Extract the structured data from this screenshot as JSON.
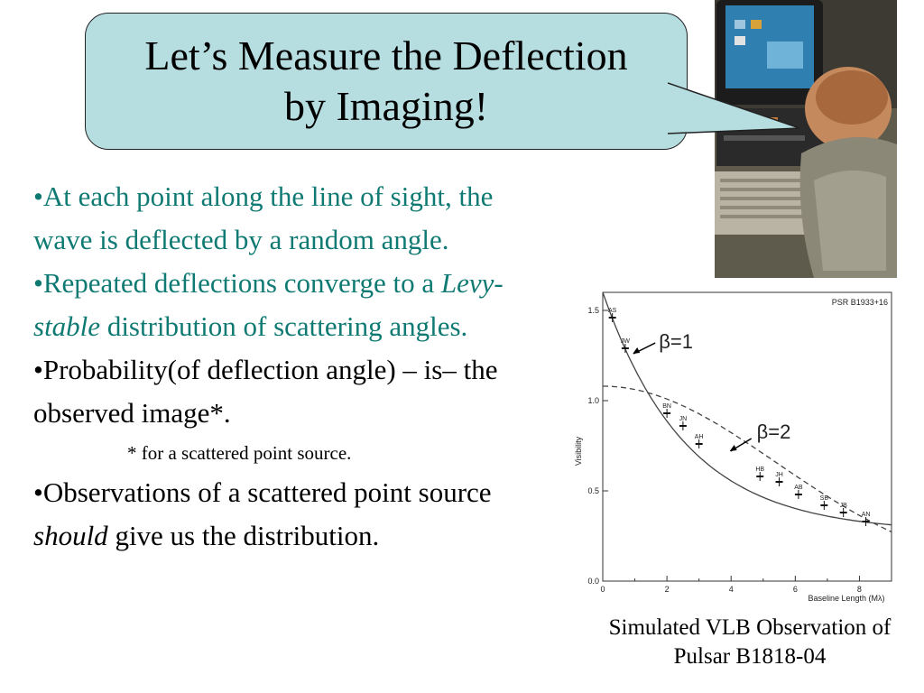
{
  "title": {
    "line1": "Let’s Measure the Deflection",
    "line2": "by Imaging!"
  },
  "photo": {
    "icon": "child-at-computer-photo"
  },
  "bullets": [
    {
      "bullet": "•",
      "text": "At each point along the line of sight, the wave is deflected by a random angle.",
      "color": "#0f7a73"
    },
    {
      "bullet": "•",
      "pre": "Repeated deflections converge to a ",
      "italic": "Levy-stable",
      "post": " distribution of scattering angles.",
      "color": "#0f7a73"
    },
    {
      "bullet": "•",
      "text": "Probability(of deflection angle) – is– the observed image*.",
      "color": "#000000"
    },
    {
      "footnote": "* for a scattered point source."
    },
    {
      "bullet": "•",
      "pre": "Observations of a scattered point source ",
      "italic": "should",
      "post": " give us the distribution.",
      "color": "#000000"
    }
  ],
  "chart_data": {
    "type": "scatter",
    "title": "PSR B1933+16",
    "xlabel": "Baseline Length (Mλ)",
    "ylabel": "Visibility",
    "xlim": [
      0,
      9
    ],
    "ylim": [
      0.0,
      1.6
    ],
    "xticks": [
      "0",
      "2",
      "4",
      "6",
      "8"
    ],
    "yticks": [
      "0.0",
      "0.5",
      "1.0",
      "1.5"
    ],
    "points": [
      {
        "x": 0.3,
        "y": 1.46,
        "label": "AS"
      },
      {
        "x": 0.7,
        "y": 1.29,
        "label": "JW"
      },
      {
        "x": 2.0,
        "y": 0.93,
        "label": "BN"
      },
      {
        "x": 2.5,
        "y": 0.86,
        "label": "JN"
      },
      {
        "x": 3.0,
        "y": 0.76,
        "label": "AH"
      },
      {
        "x": 4.9,
        "y": 0.58,
        "label": "HB"
      },
      {
        "x": 5.5,
        "y": 0.55,
        "label": "JH"
      },
      {
        "x": 6.1,
        "y": 0.48,
        "label": "AB"
      },
      {
        "x": 6.9,
        "y": 0.42,
        "label": "SB"
      },
      {
        "x": 7.5,
        "y": 0.38,
        "label": "JB"
      },
      {
        "x": 8.2,
        "y": 0.33,
        "label": "AN"
      }
    ],
    "series": [
      {
        "name": "β=1",
        "style": "solid"
      },
      {
        "name": "β=2",
        "style": "dashed"
      }
    ]
  },
  "annotations": {
    "beta1": "β=1",
    "beta2": "β=2"
  },
  "caption": {
    "line1": "Simulated VLB Observation of",
    "line2": "Pulsar B1818-04"
  },
  "colors": {
    "bubble": "#b6dde0",
    "teal_text": "#0f7a73"
  }
}
